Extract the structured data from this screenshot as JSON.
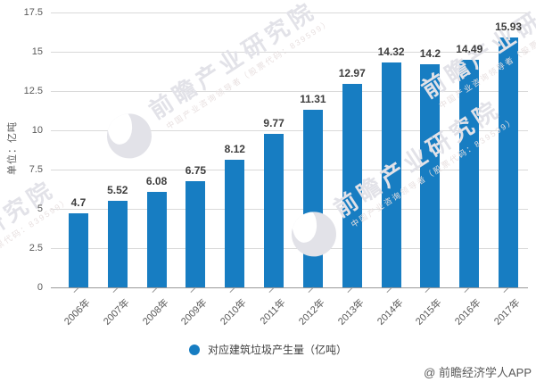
{
  "chart_data": {
    "type": "bar",
    "title": "",
    "categories": [
      "2006年",
      "2007年",
      "2008年",
      "2009年",
      "2010年",
      "2011年",
      "2012年",
      "2013年",
      "2014年",
      "2015年",
      "2016年",
      "2017年"
    ],
    "values": [
      4.7,
      5.52,
      6.08,
      6.75,
      8.12,
      9.77,
      11.31,
      12.97,
      14.32,
      14.2,
      14.49,
      15.93
    ],
    "series_name": "对应建筑垃圾产生量（亿吨）",
    "xlabel": "",
    "ylabel": "单位：亿吨",
    "ylim": [
      0,
      17.5
    ],
    "ytick_step": 2.5,
    "yticks": [
      0,
      2.5,
      5,
      7.5,
      10,
      12.5,
      15,
      17.5
    ],
    "grid": true,
    "legend_position": "bottom",
    "bar_color": "#177dc2",
    "value_labels_shown": true,
    "x_labels_rotation_deg": -45
  },
  "legend": {
    "label": "对应建筑垃圾产生量（亿吨）",
    "marker": "circle-icon",
    "marker_color": "#177dc2"
  },
  "watermark": {
    "brand": "前瞻产业研究院",
    "tagline": "中国产业咨询领导者（股票代码：839599）",
    "logo": "qianzhan-logo-icon"
  },
  "footer": {
    "credit": "@ 前瞻经济学人APP"
  },
  "colors": {
    "bar": "#177dc2",
    "gridline": "#d9d9d9",
    "axis_line": "#999999",
    "tick_label": "#595959",
    "value_label": "#3d3d3d",
    "watermark": "#e2e2e8",
    "background": "#ffffff"
  }
}
